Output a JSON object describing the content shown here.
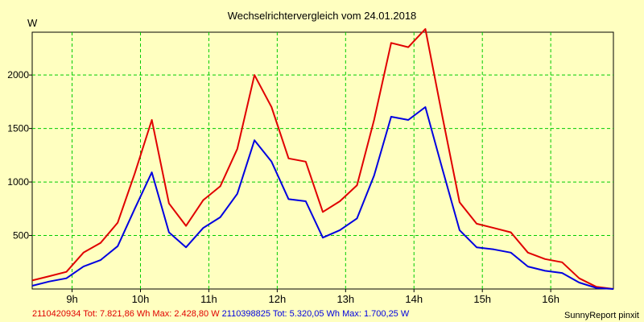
{
  "chart_data": {
    "type": "line",
    "title": "Wechselrichtervergleich vom 24.01.2018",
    "ylabel": "W",
    "xlabel": "",
    "ylim": [
      0,
      2400
    ],
    "xlim": [
      "08:25",
      "16:55"
    ],
    "y_ticks": [
      500,
      1000,
      1500,
      2000
    ],
    "x_ticks": [
      "9h",
      "10h",
      "11h",
      "12h",
      "13h",
      "14h",
      "15h",
      "16h"
    ],
    "grid": true,
    "colors": {
      "background": "#ffffc0",
      "grid": "#00cc00",
      "series_1": "#e00000",
      "series_2": "#0000e0"
    },
    "x": [
      "08:25",
      "08:40",
      "08:55",
      "09:10",
      "09:25",
      "09:40",
      "09:55",
      "10:10",
      "10:25",
      "10:40",
      "10:55",
      "11:10",
      "11:25",
      "11:40",
      "11:55",
      "12:10",
      "12:25",
      "12:40",
      "12:55",
      "13:10",
      "13:25",
      "13:40",
      "13:55",
      "14:10",
      "14:25",
      "14:40",
      "14:55",
      "15:10",
      "15:25",
      "15:40",
      "15:55",
      "16:10",
      "16:25",
      "16:40",
      "16:55"
    ],
    "series": [
      {
        "name": "2110420934",
        "color": "#e00000",
        "values": [
          80,
          120,
          160,
          340,
          430,
          620,
          1080,
          1580,
          800,
          590,
          830,
          960,
          1310,
          2000,
          1700,
          1220,
          1190,
          720,
          820,
          970,
          1580,
          2300,
          2260,
          2430,
          1610,
          810,
          610,
          570,
          530,
          340,
          280,
          250,
          100,
          20,
          0
        ]
      },
      {
        "name": "2110398825",
        "color": "#0000e0",
        "values": [
          30,
          70,
          100,
          210,
          270,
          400,
          750,
          1090,
          530,
          390,
          570,
          670,
          890,
          1390,
          1190,
          840,
          820,
          480,
          550,
          660,
          1060,
          1610,
          1580,
          1700,
          1120,
          550,
          390,
          370,
          340,
          210,
          170,
          150,
          60,
          10,
          0
        ]
      }
    ]
  },
  "footer": {
    "series_1_summary": "2110420934 Tot: 7.821,86 Wh Max: 2.428,80 W",
    "series_2_summary": "2110398825 Tot: 5.320,05 Wh Max: 1.700,25 W",
    "brand": "SunnyReport pinxit"
  }
}
